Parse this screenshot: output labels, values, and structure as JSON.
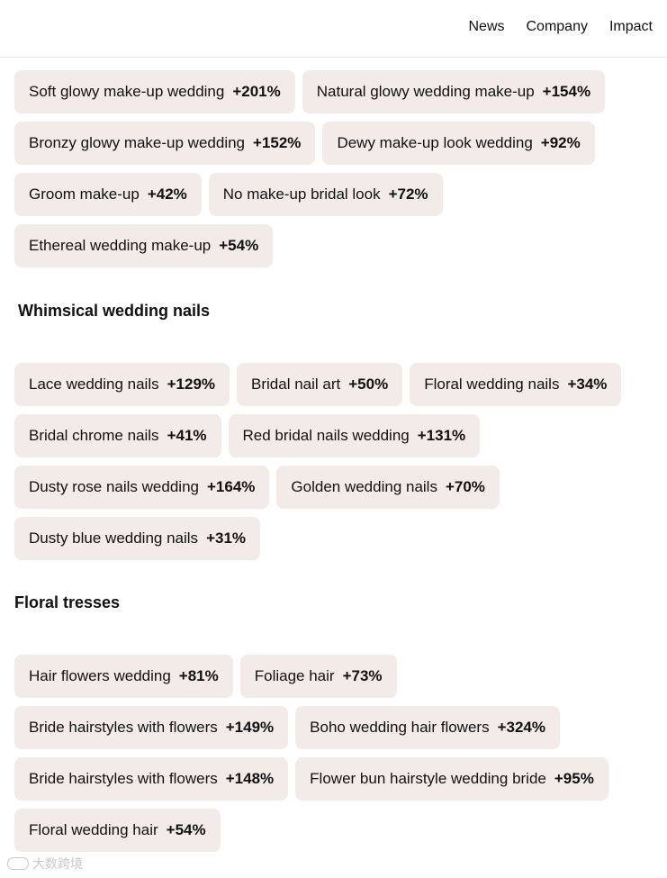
{
  "nav": {
    "items": [
      "News",
      "Company",
      "Impact"
    ]
  },
  "makeup": {
    "title": "",
    "items": [
      {
        "label": "Soft glowy make-up wedding",
        "change": "+201%"
      },
      {
        "label": "Natural glowy wedding make-up",
        "change": "+154%"
      },
      {
        "label": "Bronzy glowy make-up wedding",
        "change": "+152%"
      },
      {
        "label": "Dewy make-up look wedding",
        "change": "+92%"
      },
      {
        "label": "Groom make-up",
        "change": "+42%"
      },
      {
        "label": "No make-up bridal look",
        "change": "+72%"
      },
      {
        "label": "Ethereal wedding make-up",
        "change": "+54%"
      }
    ]
  },
  "nails": {
    "title": "Whimsical wedding nails",
    "items": [
      {
        "label": "Lace wedding nails",
        "change": "+129%"
      },
      {
        "label": "Bridal nail art",
        "change": "+50%"
      },
      {
        "label": "Floral wedding nails",
        "change": "+34%"
      },
      {
        "label": "Bridal chrome nails",
        "change": "+41%"
      },
      {
        "label": "Red bridal nails wedding",
        "change": "+131%"
      },
      {
        "label": "Dusty rose nails wedding",
        "change": "+164%"
      },
      {
        "label": "Golden wedding nails",
        "change": "+70%"
      },
      {
        "label": "Dusty blue wedding nails",
        "change": "+31%"
      }
    ]
  },
  "tresses": {
    "title": "Floral tresses",
    "items": [
      {
        "label": "Hair flowers wedding",
        "change": "+81%"
      },
      {
        "label": "Foliage hair",
        "change": "+73%"
      },
      {
        "label": "Bride hairstyles with flowers",
        "change": "+149%"
      },
      {
        "label": "Boho wedding hair flowers",
        "change": "+324%"
      },
      {
        "label": "Bride hairstyles with flowers",
        "change": "+148%"
      },
      {
        "label": "Flower bun hairstyle wedding bride",
        "change": "+95%"
      },
      {
        "label": "Floral wedding hair",
        "change": "+54%"
      }
    ]
  },
  "watermark": {
    "text": "大数跨境"
  }
}
